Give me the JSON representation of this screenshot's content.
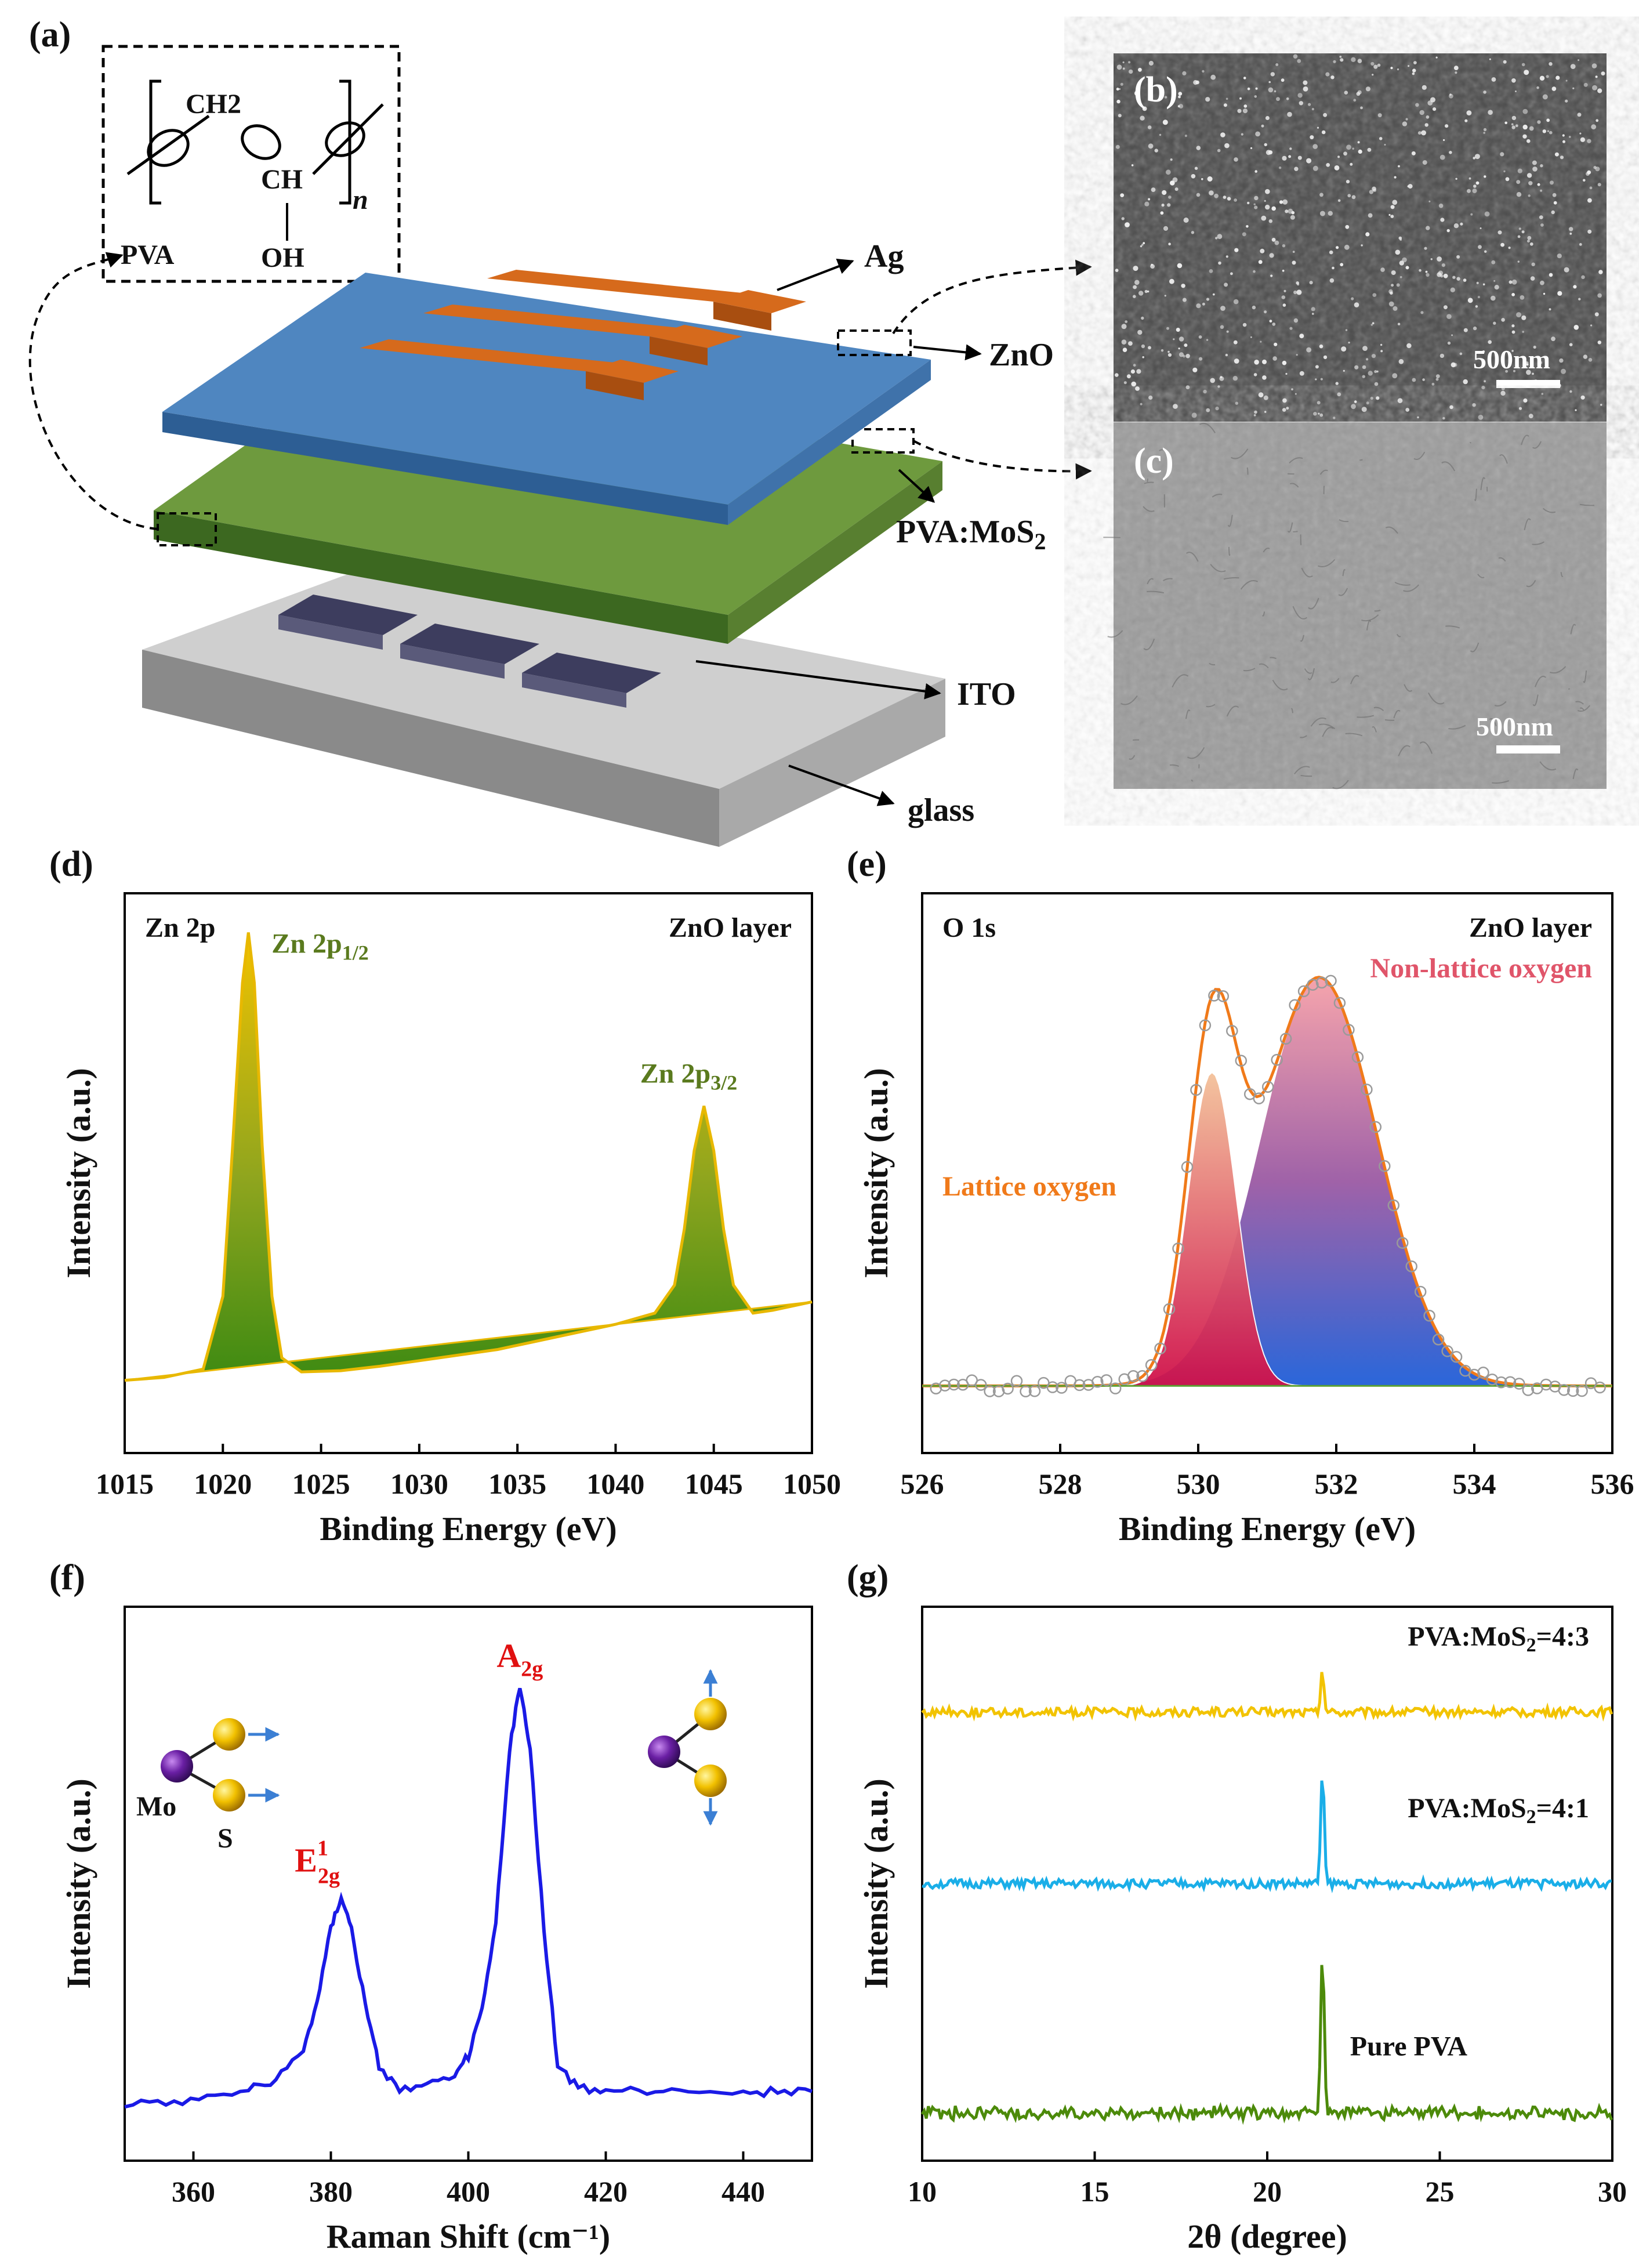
{
  "panels": {
    "a": {
      "label": "(a)",
      "structure": {
        "monomer": "CH2",
        "methine": "CH",
        "hydroxyl": "OH",
        "name": "PVA",
        "subscript": "n"
      },
      "layers": {
        "top_contact": "Ag",
        "top_layer": "ZnO",
        "active_layer": "PVA:MoS",
        "active_layer_sub": "2",
        "bottom_contact": "ITO",
        "substrate": "glass"
      }
    },
    "b": {
      "label": "(b)",
      "scale_bar": "500nm"
    },
    "c": {
      "label": "(c)",
      "scale_bar": "500nm"
    }
  },
  "chart_data": [
    {
      "id": "d",
      "type": "line",
      "panel_label": "(d)",
      "xlabel": "Binding Energy (eV)",
      "ylabel": "Intensity (a.u.)",
      "xlim": [
        1015,
        1050
      ],
      "ylim": [
        0,
        100
      ],
      "xticks": [
        1015,
        1020,
        1025,
        1030,
        1035,
        1040,
        1045,
        1050
      ],
      "corner_left": "Zn 2p",
      "corner_right": "ZnO layer",
      "peaks": [
        {
          "label": "Zn 2p",
          "sub": "1/2",
          "position": 1021.3,
          "height": 93
        },
        {
          "label": "Zn 2p",
          "sub": "3/2",
          "position": 1044.5,
          "height": 62
        }
      ],
      "x": [
        1015,
        1017,
        1019,
        1020,
        1020.5,
        1021,
        1021.3,
        1021.6,
        1022,
        1022.5,
        1023,
        1024,
        1026,
        1028,
        1030,
        1032,
        1034,
        1036,
        1038,
        1040,
        1042,
        1043,
        1043.5,
        1044,
        1044.5,
        1045,
        1045.5,
        1046,
        1047,
        1048,
        1050
      ],
      "y": [
        13,
        13.5,
        15,
        28,
        55,
        84,
        93,
        84,
        55,
        28,
        17,
        14.5,
        14.7,
        15.5,
        16.5,
        17.5,
        18.5,
        20,
        21.5,
        23,
        25,
        30,
        40,
        54,
        62,
        54,
        40,
        30,
        25,
        25.5,
        27
      ]
    },
    {
      "id": "e",
      "type": "line",
      "panel_label": "(e)",
      "xlabel": "Binding Energy (eV)",
      "ylabel": "Intensity (a.u.)",
      "xlim": [
        526,
        536
      ],
      "ylim": [
        0,
        100
      ],
      "xticks": [
        526,
        528,
        530,
        532,
        534,
        536
      ],
      "corner_left": "O 1s",
      "corner_right": "ZnO layer",
      "components": [
        {
          "name": "Lattice oxygen",
          "center": 530.2,
          "amplitude": 56,
          "sigma": 0.35,
          "color": "#e8843c"
        },
        {
          "name": "Non-lattice oxygen",
          "center": 531.75,
          "amplitude": 73,
          "sigma": 0.85,
          "color": "#e0556a"
        }
      ],
      "baseline": 12
    },
    {
      "id": "f",
      "type": "line",
      "panel_label": "(f)",
      "xlabel": "Raman Shift (cm⁻¹)",
      "ylabel": "Intensity (a.u.)",
      "xlim": [
        350,
        450
      ],
      "ylim": [
        0,
        100
      ],
      "xticks": [
        360,
        380,
        400,
        420,
        440
      ],
      "line_color": "#1a1ae6",
      "peaks": [
        {
          "label": "E",
          "sup": "1",
          "sub": "2g",
          "position": 381.5,
          "height": 48
        },
        {
          "label": "A",
          "sub": "2g",
          "position": 407.5,
          "height": 86
        }
      ],
      "atom_labels": {
        "metal": "Mo",
        "chalcogen": "S"
      },
      "x": [
        350,
        356,
        362,
        368,
        372,
        376,
        378,
        380,
        381.5,
        383,
        385,
        387,
        390,
        394,
        398,
        400,
        402,
        404,
        406,
        407.5,
        409,
        411,
        413,
        416,
        420,
        426,
        432,
        440,
        445,
        450
      ],
      "y": [
        10,
        10.5,
        11.5,
        13,
        14.5,
        20,
        29,
        42,
        48,
        42,
        28,
        17,
        13,
        13.5,
        15,
        19,
        27,
        43,
        74,
        86,
        74,
        42,
        17,
        13,
        12.5,
        12.5,
        13,
        12,
        12.5,
        12.5
      ]
    },
    {
      "id": "g",
      "type": "line",
      "panel_label": "(g)",
      "xlabel": "2θ  (degree)",
      "ylabel": "Intensity (a.u.)",
      "xlim": [
        10,
        30
      ],
      "ylim": [
        0,
        100
      ],
      "xticks": [
        10,
        15,
        20,
        25,
        30
      ],
      "series": [
        {
          "name": "PVA:MoS",
          "sub": "2",
          "suffix": "=4:3",
          "color": "#f2c300",
          "offset": 81,
          "peak_position": 21.6,
          "peak_height": 7
        },
        {
          "name": "PVA:MoS",
          "sub": "2",
          "suffix": "=4:1",
          "color": "#1aaee8",
          "offset": 50,
          "peak_position": 21.6,
          "peak_height": 21
        },
        {
          "name": "Pure PVA",
          "sub": "",
          "suffix": "",
          "color": "#4c8a0a",
          "offset": 8,
          "peak_position": 21.6,
          "peak_height": 30
        }
      ]
    }
  ]
}
